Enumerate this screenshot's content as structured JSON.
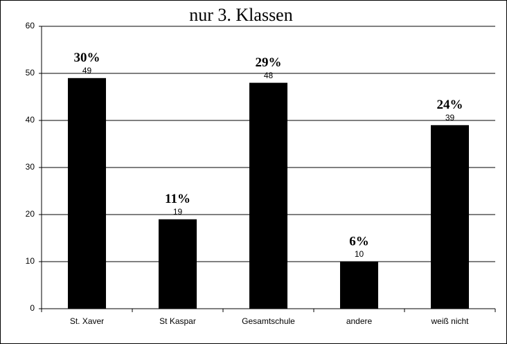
{
  "chart_data": {
    "type": "bar",
    "title": "nur 3. Klassen",
    "categories": [
      "St. Xaver",
      "St Kaspar",
      "Gesamtschule",
      "andere",
      "weiß nicht"
    ],
    "values": [
      49,
      19,
      48,
      10,
      39
    ],
    "percent_labels": [
      "30%",
      "11%",
      "29%",
      "6%",
      "24%"
    ],
    "color": "#000000",
    "ylim": [
      0,
      60
    ],
    "yticks": [
      0,
      10,
      20,
      30,
      40,
      50,
      60
    ],
    "grid": true
  }
}
